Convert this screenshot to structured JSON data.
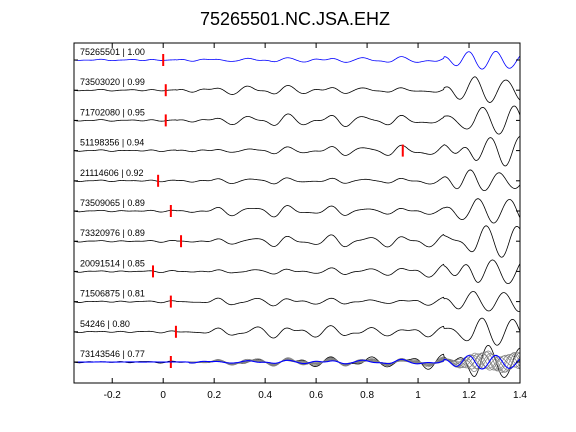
{
  "chart_data": {
    "type": "line",
    "title": "75265501.NC.JSA.EHZ",
    "xlabel": "",
    "ylabel": "",
    "xlim": [
      -0.35,
      1.4
    ],
    "xticks": [
      -0.2,
      0,
      0.2,
      0.4,
      0.6,
      0.8,
      1,
      1.2,
      1.4
    ],
    "xtick_labels": [
      "-0.2",
      "0",
      "0.2",
      "0.4",
      "0.6",
      "0.8",
      "1",
      "1.2",
      "1.4"
    ],
    "grid": false,
    "series": [
      {
        "name": "75265501 | 1.00",
        "pick_time": 0.0,
        "color": "#0000ff"
      },
      {
        "name": "73503020 | 0.99",
        "pick_time": 0.01,
        "color": "#000000"
      },
      {
        "name": "71702080 | 0.95",
        "pick_time": 0.01,
        "color": "#000000"
      },
      {
        "name": "51198356 | 0.94",
        "pick_time": 0.94,
        "color": "#000000"
      },
      {
        "name": "21114606 | 0.92",
        "pick_time": -0.02,
        "color": "#000000"
      },
      {
        "name": "73509065 | 0.89",
        "pick_time": 0.03,
        "color": "#000000"
      },
      {
        "name": "73320976 | 0.89",
        "pick_time": 0.07,
        "color": "#000000"
      },
      {
        "name": "20091514 | 0.85",
        "pick_time": -0.04,
        "color": "#000000"
      },
      {
        "name": "71506875 | 0.81",
        "pick_time": 0.03,
        "color": "#000000"
      },
      {
        "name": "54246 | 0.80",
        "pick_time": 0.05,
        "color": "#000000"
      },
      {
        "name": "73143546 | 0.77",
        "pick_time": 0.03,
        "color": "#000000"
      }
    ],
    "stack_colors": {
      "reference": "#0000ff",
      "overlay": "#808080"
    },
    "pick_color": "#ff0000"
  }
}
